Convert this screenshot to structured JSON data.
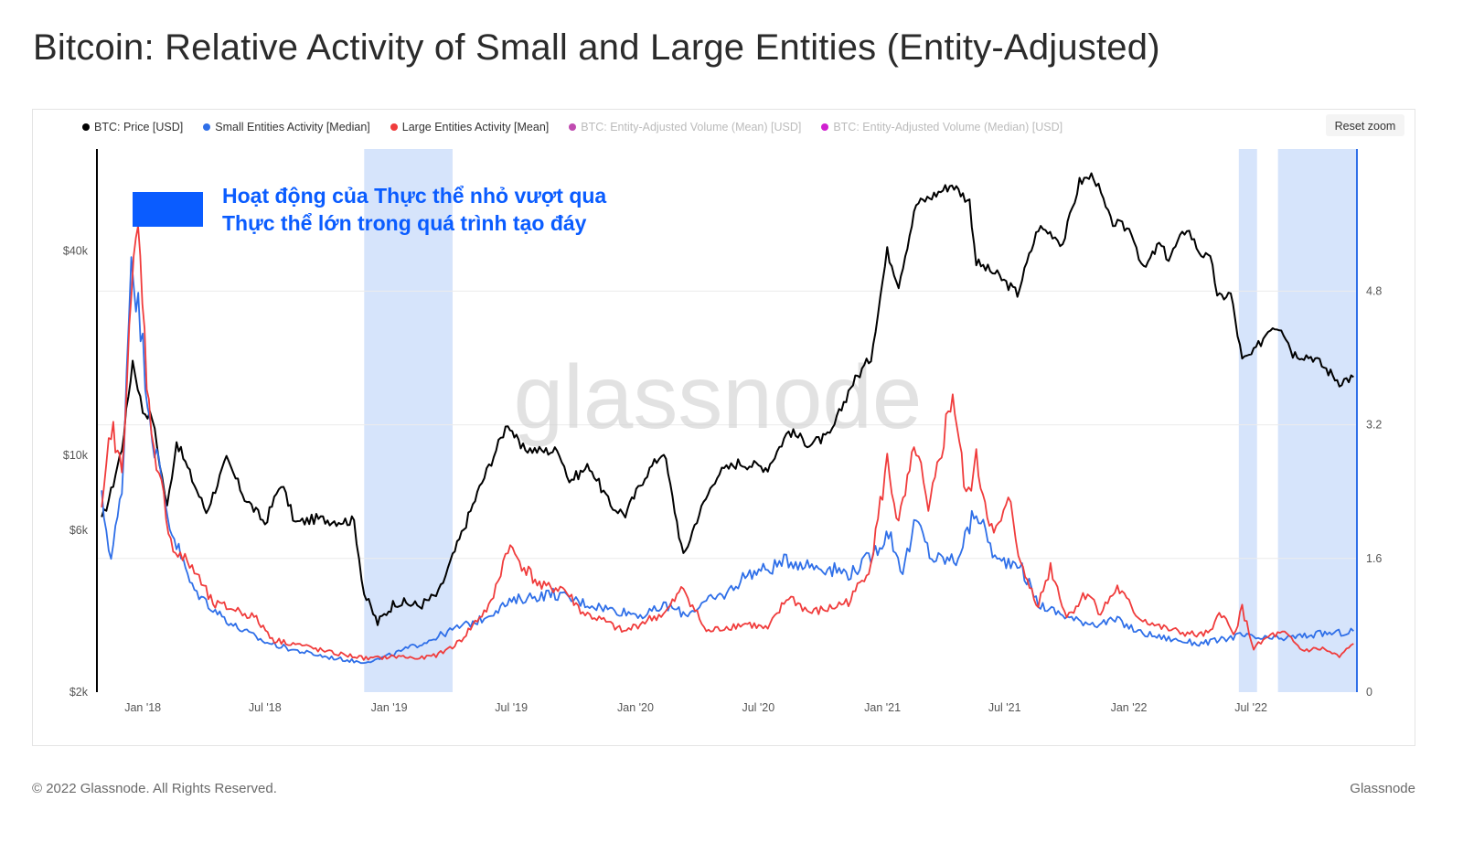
{
  "page": {
    "title": "Bitcoin: Relative Activity of Small and Large Entities (Entity-Adjusted)",
    "footer_left": "© 2022 Glassnode. All Rights Reserved.",
    "footer_right": "Glassnode",
    "watermark": "glassnode",
    "reset_zoom_label": "Reset zoom"
  },
  "legend": [
    {
      "label": "BTC: Price [USD]",
      "color": "#000000",
      "active": true
    },
    {
      "label": "Small Entities Activity [Median]",
      "color": "#2f6fe8",
      "active": true
    },
    {
      "label": "Large Entities Activity [Mean]",
      "color": "#f03c3c",
      "active": true
    },
    {
      "label": "BTC: Entity-Adjusted Volume (Mean) [USD]",
      "color": "#c04bb0",
      "active": false
    },
    {
      "label": "BTC: Entity-Adjusted Volume (Median) [USD]",
      "color": "#d020d0",
      "active": false
    }
  ],
  "annotation": {
    "line1": "Hoạt động của Thực thể nhỏ vượt qua",
    "line2": "Thực thể lớn trong quá trình tạo đáy",
    "color": "#0a5cff"
  },
  "chart_data": {
    "type": "line",
    "x_ticks": [
      "Jan '18",
      "Jul '18",
      "Jan '19",
      "Jul '19",
      "Jan '20",
      "Jul '20",
      "Jan '21",
      "Jul '21",
      "Jan '22",
      "Jul '22"
    ],
    "x_tick_dates": [
      "2018-01-01",
      "2018-07-01",
      "2019-01-01",
      "2019-07-01",
      "2020-01-01",
      "2020-07-01",
      "2021-01-01",
      "2021-07-01",
      "2022-01-01",
      "2022-07-01"
    ],
    "x_range": [
      "2017-10-25",
      "2022-12-05"
    ],
    "y_left": {
      "scale": "log",
      "range": [
        2000,
        80000
      ],
      "ticks": [
        2000,
        6000,
        10000,
        40000
      ],
      "tick_labels": [
        "$2k",
        "$6k",
        "$10k",
        "$40k"
      ]
    },
    "y_right": {
      "scale": "linear",
      "range": [
        0,
        6.5
      ],
      "ticks": [
        0,
        1.6,
        3.2,
        4.8
      ],
      "tick_labels": [
        "0",
        "1.6",
        "3.2",
        "4.8"
      ]
    },
    "highlight_periods": [
      {
        "start": "2018-11-25",
        "end": "2019-04-05"
      },
      {
        "start": "2022-06-13",
        "end": "2022-07-10"
      },
      {
        "start": "2022-08-10",
        "end": "2022-12-05"
      }
    ],
    "series": [
      {
        "name": "BTC: Price [USD]",
        "axis": "left",
        "color": "#000000",
        "points": [
          [
            "2017-11-01",
            6400
          ],
          [
            "2017-11-15",
            7800
          ],
          [
            "2017-12-01",
            10500
          ],
          [
            "2017-12-17",
            19000
          ],
          [
            "2018-01-01",
            13500
          ],
          [
            "2018-01-15",
            13000
          ],
          [
            "2018-02-06",
            7000
          ],
          [
            "2018-02-20",
            11000
          ],
          [
            "2018-03-15",
            8500
          ],
          [
            "2018-04-05",
            6800
          ],
          [
            "2018-05-05",
            9700
          ],
          [
            "2018-06-01",
            7500
          ],
          [
            "2018-07-01",
            6300
          ],
          [
            "2018-07-25",
            8300
          ],
          [
            "2018-08-15",
            6300
          ],
          [
            "2018-09-15",
            6500
          ],
          [
            "2018-10-15",
            6400
          ],
          [
            "2018-11-10",
            6400
          ],
          [
            "2018-11-25",
            3900
          ],
          [
            "2018-12-15",
            3200
          ],
          [
            "2019-01-10",
            3700
          ],
          [
            "2019-02-15",
            3600
          ],
          [
            "2019-03-15",
            3900
          ],
          [
            "2019-04-05",
            5000
          ],
          [
            "2019-05-15",
            8000
          ],
          [
            "2019-06-26",
            12500
          ],
          [
            "2019-07-15",
            10500
          ],
          [
            "2019-08-15",
            10300
          ],
          [
            "2019-09-10",
            10300
          ],
          [
            "2019-09-25",
            8400
          ],
          [
            "2019-10-25",
            9300
          ],
          [
            "2019-11-25",
            7100
          ],
          [
            "2019-12-17",
            6700
          ],
          [
            "2020-01-15",
            8700
          ],
          [
            "2020-02-12",
            10300
          ],
          [
            "2020-03-12",
            5000
          ],
          [
            "2020-04-01",
            6500
          ],
          [
            "2020-05-01",
            8800
          ],
          [
            "2020-06-01",
            9500
          ],
          [
            "2020-07-15",
            9200
          ],
          [
            "2020-08-15",
            11800
          ],
          [
            "2020-09-15",
            10800
          ],
          [
            "2020-10-15",
            11400
          ],
          [
            "2020-11-15",
            16000
          ],
          [
            "2020-12-15",
            19500
          ],
          [
            "2021-01-08",
            40000
          ],
          [
            "2021-01-25",
            32000
          ],
          [
            "2021-02-20",
            55000
          ],
          [
            "2021-03-15",
            58000
          ],
          [
            "2021-04-14",
            63000
          ],
          [
            "2021-05-10",
            56000
          ],
          [
            "2021-05-20",
            37000
          ],
          [
            "2021-06-20",
            34000
          ],
          [
            "2021-07-20",
            30000
          ],
          [
            "2021-08-20",
            47000
          ],
          [
            "2021-09-10",
            45000
          ],
          [
            "2021-09-25",
            42000
          ],
          [
            "2021-10-20",
            64000
          ],
          [
            "2021-11-10",
            67000
          ],
          [
            "2021-12-05",
            49000
          ],
          [
            "2022-01-05",
            46000
          ],
          [
            "2022-01-23",
            35000
          ],
          [
            "2022-02-15",
            42000
          ],
          [
            "2022-03-01",
            38000
          ],
          [
            "2022-03-28",
            47000
          ],
          [
            "2022-04-15",
            40000
          ],
          [
            "2022-05-05",
            37000
          ],
          [
            "2022-05-12",
            29000
          ],
          [
            "2022-06-01",
            30000
          ],
          [
            "2022-06-18",
            19000
          ],
          [
            "2022-07-05",
            20000
          ],
          [
            "2022-07-30",
            24000
          ],
          [
            "2022-08-15",
            24000
          ],
          [
            "2022-09-01",
            20000
          ],
          [
            "2022-10-01",
            19500
          ],
          [
            "2022-11-09",
            16500
          ],
          [
            "2022-11-30",
            17000
          ]
        ]
      },
      {
        "name": "Small Entities Activity [Median]",
        "axis": "right",
        "color": "#2f6fe8",
        "points": [
          [
            "2017-11-01",
            2.3
          ],
          [
            "2017-11-15",
            1.6
          ],
          [
            "2017-12-01",
            2.4
          ],
          [
            "2017-12-15",
            5.3
          ],
          [
            "2018-01-01",
            4.1
          ],
          [
            "2018-01-15",
            3.1
          ],
          [
            "2018-02-10",
            2.0
          ],
          [
            "2018-03-15",
            1.25
          ],
          [
            "2018-04-15",
            1.0
          ],
          [
            "2018-05-15",
            0.8
          ],
          [
            "2018-07-01",
            0.6
          ],
          [
            "2018-08-15",
            0.5
          ],
          [
            "2018-10-01",
            0.42
          ],
          [
            "2018-11-20",
            0.36
          ],
          [
            "2018-12-15",
            0.39
          ],
          [
            "2019-01-15",
            0.48
          ],
          [
            "2019-03-01",
            0.62
          ],
          [
            "2019-04-15",
            0.78
          ],
          [
            "2019-05-15",
            0.86
          ],
          [
            "2019-06-15",
            1.02
          ],
          [
            "2019-07-15",
            1.12
          ],
          [
            "2019-09-01",
            1.18
          ],
          [
            "2019-10-15",
            1.07
          ],
          [
            "2019-12-01",
            0.98
          ],
          [
            "2020-01-15",
            0.92
          ],
          [
            "2020-02-15",
            1.04
          ],
          [
            "2020-03-15",
            0.93
          ],
          [
            "2020-04-15",
            1.08
          ],
          [
            "2020-05-15",
            1.18
          ],
          [
            "2020-06-15",
            1.42
          ],
          [
            "2020-07-15",
            1.47
          ],
          [
            "2020-08-15",
            1.58
          ],
          [
            "2020-09-15",
            1.52
          ],
          [
            "2020-10-15",
            1.48
          ],
          [
            "2020-11-15",
            1.42
          ],
          [
            "2020-12-15",
            1.62
          ],
          [
            "2021-01-10",
            1.92
          ],
          [
            "2021-01-31",
            1.45
          ],
          [
            "2021-02-20",
            2.05
          ],
          [
            "2021-03-15",
            1.6
          ],
          [
            "2021-04-20",
            1.58
          ],
          [
            "2021-05-20",
            2.18
          ],
          [
            "2021-06-20",
            1.55
          ],
          [
            "2021-07-20",
            1.58
          ],
          [
            "2021-08-20",
            1.05
          ],
          [
            "2021-09-15",
            0.96
          ],
          [
            "2021-10-15",
            0.86
          ],
          [
            "2021-11-15",
            0.82
          ],
          [
            "2021-12-15",
            0.86
          ],
          [
            "2022-01-15",
            0.72
          ],
          [
            "2022-02-15",
            0.66
          ],
          [
            "2022-03-15",
            0.62
          ],
          [
            "2022-04-15",
            0.58
          ],
          [
            "2022-05-15",
            0.62
          ],
          [
            "2022-06-15",
            0.68
          ],
          [
            "2022-07-15",
            0.64
          ],
          [
            "2022-08-15",
            0.64
          ],
          [
            "2022-09-15",
            0.67
          ],
          [
            "2022-10-15",
            0.7
          ],
          [
            "2022-11-15",
            0.71
          ],
          [
            "2022-11-30",
            0.73
          ]
        ]
      },
      {
        "name": "Large Entities Activity [Mean]",
        "axis": "right",
        "color": "#f03c3c",
        "points": [
          [
            "2017-11-01",
            2.1
          ],
          [
            "2017-11-15",
            3.2
          ],
          [
            "2017-12-01",
            2.6
          ],
          [
            "2017-12-12",
            4.5
          ],
          [
            "2017-12-25",
            5.5
          ],
          [
            "2018-01-10",
            3.4
          ],
          [
            "2018-01-25",
            2.6
          ],
          [
            "2018-02-15",
            1.7
          ],
          [
            "2018-03-15",
            1.5
          ],
          [
            "2018-04-15",
            1.05
          ],
          [
            "2018-05-15",
            1.0
          ],
          [
            "2018-06-15",
            0.9
          ],
          [
            "2018-07-15",
            0.62
          ],
          [
            "2018-08-15",
            0.58
          ],
          [
            "2018-10-01",
            0.48
          ],
          [
            "2018-11-01",
            0.44
          ],
          [
            "2018-12-01",
            0.4
          ],
          [
            "2019-01-15",
            0.43
          ],
          [
            "2019-02-15",
            0.4
          ],
          [
            "2019-03-15",
            0.45
          ],
          [
            "2019-04-15",
            0.6
          ],
          [
            "2019-05-15",
            0.9
          ],
          [
            "2019-06-01",
            1.05
          ],
          [
            "2019-06-26",
            1.75
          ],
          [
            "2019-07-20",
            1.5
          ],
          [
            "2019-08-15",
            1.25
          ],
          [
            "2019-09-15",
            1.25
          ],
          [
            "2019-10-15",
            0.95
          ],
          [
            "2019-11-15",
            0.85
          ],
          [
            "2019-12-15",
            0.72
          ],
          [
            "2020-01-15",
            0.85
          ],
          [
            "2020-02-15",
            0.95
          ],
          [
            "2020-03-12",
            1.25
          ],
          [
            "2020-04-15",
            0.72
          ],
          [
            "2020-05-15",
            0.78
          ],
          [
            "2020-06-15",
            0.82
          ],
          [
            "2020-07-15",
            0.75
          ],
          [
            "2020-08-15",
            1.15
          ],
          [
            "2020-09-15",
            0.95
          ],
          [
            "2020-10-15",
            1.0
          ],
          [
            "2020-11-15",
            1.1
          ],
          [
            "2020-12-15",
            1.55
          ],
          [
            "2021-01-08",
            2.75
          ],
          [
            "2021-01-25",
            2.0
          ],
          [
            "2021-02-20",
            2.95
          ],
          [
            "2021-03-10",
            2.1
          ],
          [
            "2021-04-15",
            3.6
          ],
          [
            "2021-05-05",
            2.3
          ],
          [
            "2021-05-20",
            2.75
          ],
          [
            "2021-06-15",
            1.85
          ],
          [
            "2021-07-10",
            2.3
          ],
          [
            "2021-07-25",
            1.5
          ],
          [
            "2021-08-20",
            1.05
          ],
          [
            "2021-09-07",
            1.5
          ],
          [
            "2021-10-01",
            0.9
          ],
          [
            "2021-11-01",
            1.2
          ],
          [
            "2021-11-20",
            0.95
          ],
          [
            "2021-12-15",
            1.25
          ],
          [
            "2022-01-15",
            0.9
          ],
          [
            "2022-02-15",
            0.78
          ],
          [
            "2022-03-15",
            0.72
          ],
          [
            "2022-04-15",
            0.68
          ],
          [
            "2022-05-05",
            0.72
          ],
          [
            "2022-05-15",
            1.0
          ],
          [
            "2022-06-05",
            0.68
          ],
          [
            "2022-06-18",
            1.0
          ],
          [
            "2022-07-05",
            0.52
          ],
          [
            "2022-07-30",
            0.68
          ],
          [
            "2022-08-20",
            0.7
          ],
          [
            "2022-09-15",
            0.5
          ],
          [
            "2022-10-15",
            0.52
          ],
          [
            "2022-11-09",
            0.42
          ],
          [
            "2022-11-30",
            0.58
          ]
        ]
      }
    ]
  }
}
